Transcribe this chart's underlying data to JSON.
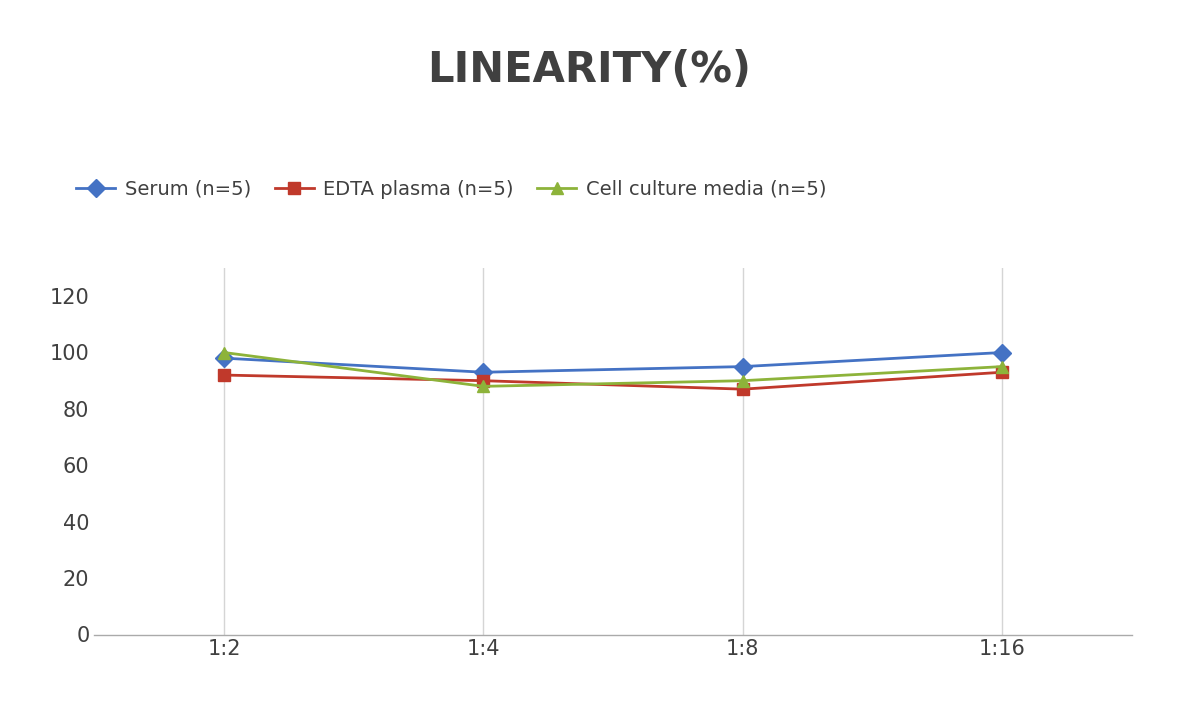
{
  "title": "LINEARITY(%)",
  "title_fontsize": 30,
  "title_fontweight": "bold",
  "title_color": "#404040",
  "x_labels": [
    "1:2",
    "1:4",
    "1:8",
    "1:16"
  ],
  "x_positions": [
    0,
    1,
    2,
    3
  ],
  "series": [
    {
      "label": "Serum (n=5)",
      "values": [
        98,
        93,
        95,
        100
      ],
      "color": "#4472C4",
      "marker": "D",
      "markersize": 9
    },
    {
      "label": "EDTA plasma (n=5)",
      "values": [
        92,
        90,
        87,
        93
      ],
      "color": "#C0392B",
      "marker": "s",
      "markersize": 9
    },
    {
      "label": "Cell culture media (n=5)",
      "values": [
        100,
        88,
        90,
        95
      ],
      "color": "#8DB33A",
      "marker": "^",
      "markersize": 9
    }
  ],
  "ylim": [
    0,
    130
  ],
  "yticks": [
    0,
    20,
    40,
    60,
    80,
    100,
    120
  ],
  "background_color": "#ffffff",
  "grid_color": "#d5d5d5",
  "legend_fontsize": 14,
  "tick_fontsize": 15,
  "tick_color": "#404040"
}
